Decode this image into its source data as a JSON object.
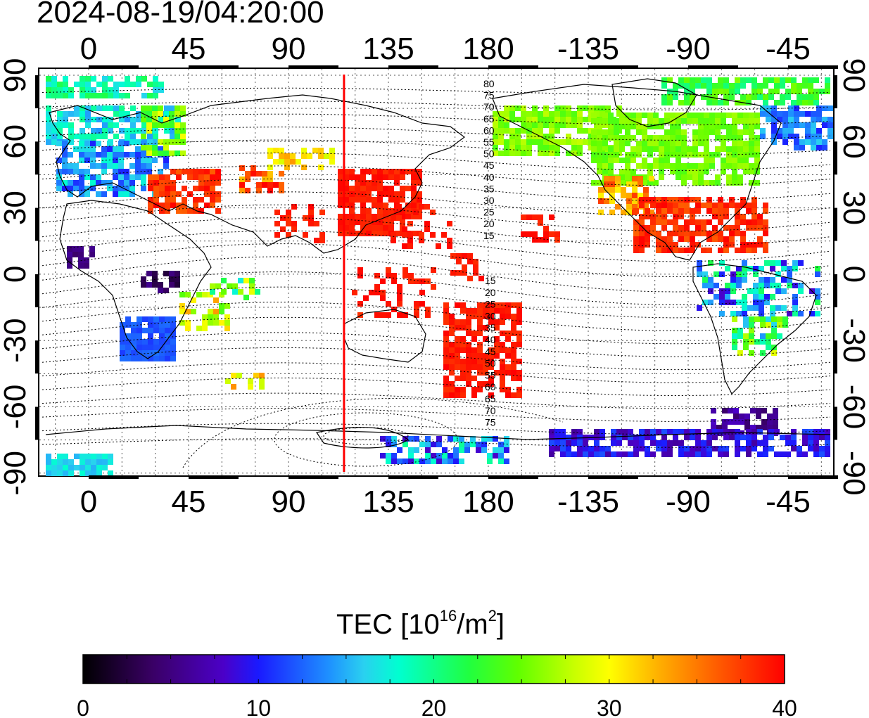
{
  "title": "2024-08-19/04:20:00",
  "map": {
    "top_lon_labels": [
      "0",
      "45",
      "90",
      "135",
      "180",
      "-135",
      "-90",
      "-45"
    ],
    "bottom_lon_labels": [
      "0",
      "45",
      "90",
      "135",
      "180",
      "-135",
      "-90",
      "-45"
    ],
    "left_lat_labels": [
      "90",
      "60",
      "30",
      "0",
      "-30",
      "-60",
      "-90"
    ],
    "right_lat_labels": [
      "90",
      "60",
      "30",
      "0",
      "-30",
      "-60",
      "-90"
    ],
    "terminator_lon": 115,
    "terminator_color": "#ff0000",
    "contour_labels_north": [
      "80",
      "75",
      "70",
      "65",
      "60",
      "55",
      "50",
      "45",
      "40",
      "35",
      "30",
      "25",
      "20",
      "15"
    ],
    "contour_labels_south": [
      "15",
      "20",
      "25",
      "30",
      "35",
      "40",
      "45",
      "50",
      "55",
      "60",
      "65",
      "70",
      "75"
    ],
    "contour_labels_south_visible": [
      "15",
      "20",
      "25",
      "30",
      "35",
      "40",
      "45",
      "50",
      "55",
      "60",
      "65",
      "70",
      "75"
    ]
  },
  "colorbar": {
    "title_main": "TEC  [10",
    "title_exp1": "16",
    "title_mid": "/m",
    "title_exp2": "2",
    "title_end": "]",
    "ticks": [
      "0",
      "10",
      "20",
      "30",
      "40"
    ],
    "min": 0,
    "max": 40
  }
}
